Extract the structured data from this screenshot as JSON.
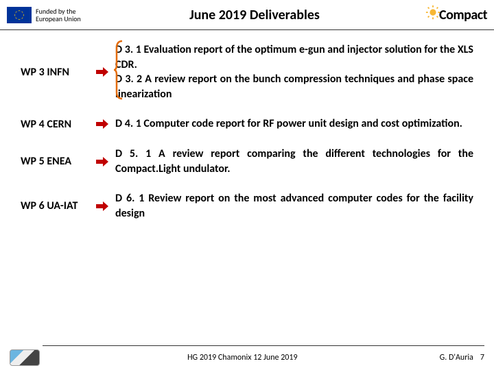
{
  "header": {
    "funded_text": "Funded by the\nEuropean Union",
    "title": "June 2019 Deliverables",
    "brand": "Compact"
  },
  "rows": [
    {
      "label": "WP 3 INFN",
      "desc": "D 3. 1 Evaluation report of the optimum e-gun and injector solution for the XLS CDR.\nD 3. 2 A review report on the bunch compression techniques and phase space linearization"
    },
    {
      "label": "WP 4 CERN",
      "desc": "D 4. 1 Computer code report for RF power unit design and cost optimization."
    },
    {
      "label": "WP 5 ENEA",
      "desc": "D 5. 1 A review report comparing the different technologies for the Compact.Light undulator."
    },
    {
      "label": "WP 6 UA-IAT",
      "desc": "D 6. 1 Review report on the most advanced computer codes for the facility design"
    }
  ],
  "footer": {
    "center": "HG 2019 Chamonix 12 June 2019",
    "right": "G. D'Auria",
    "page": "7"
  },
  "colors": {
    "arrow": "#c00000",
    "bracket": "#e46c0a"
  }
}
